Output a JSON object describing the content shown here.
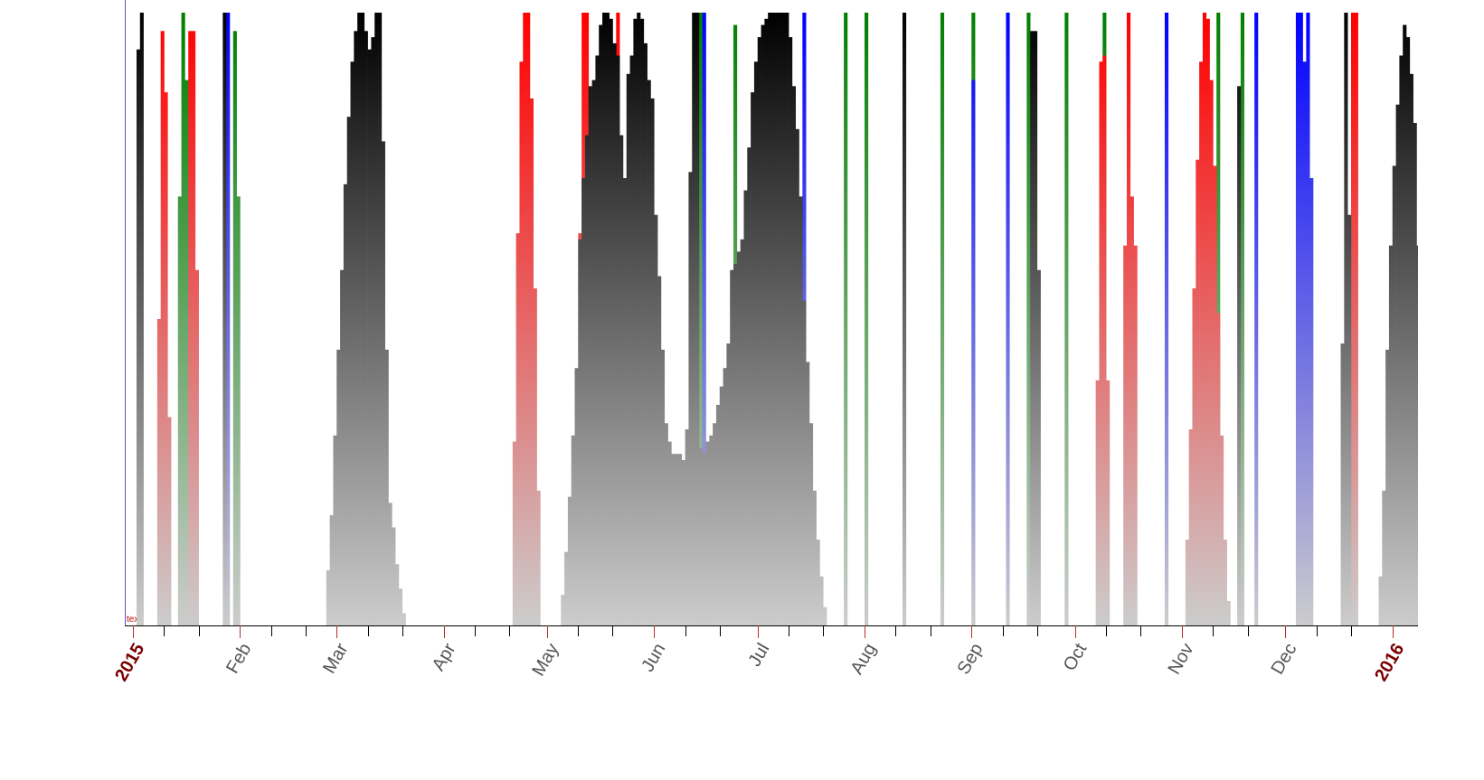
{
  "chart_data": {
    "type": "bar",
    "annotation": "text",
    "xlim": [
      -2.4,
      372.4
    ],
    "ylim": [
      0,
      100
    ],
    "xticks": [
      {
        "value": 0,
        "label": "2015"
      },
      {
        "value": 31,
        "label": "Feb"
      },
      {
        "value": 59,
        "label": "Mar"
      },
      {
        "value": 90,
        "label": "Apr"
      },
      {
        "value": 120,
        "label": "May"
      },
      {
        "value": 151,
        "label": "Jun"
      },
      {
        "value": 181,
        "label": "Jul"
      },
      {
        "value": 212,
        "label": "Aug"
      },
      {
        "value": 243,
        "label": "Sep"
      },
      {
        "value": 273,
        "label": "Oct"
      },
      {
        "value": 304,
        "label": "Nov"
      },
      {
        "value": 334,
        "label": "Dec"
      },
      {
        "value": 365,
        "label": "2016"
      }
    ],
    "xminorticks": [
      9,
      19,
      40,
      50,
      68,
      78,
      99,
      109,
      129,
      139,
      160,
      170,
      190,
      200,
      221,
      231,
      252,
      262,
      282,
      292,
      313,
      323,
      343,
      353
    ],
    "series": [
      {
        "color": "#008000",
        "x": [
          13,
          14,
          15,
          29,
          30,
          164,
          174,
          206,
          212,
          234,
          243,
          259,
          270,
          281,
          314,
          321
        ],
        "values": [
          70,
          100,
          89,
          97,
          70,
          100,
          98,
          100,
          100,
          100,
          100,
          100,
          100,
          100,
          100,
          100
        ]
      },
      {
        "color": "#ff0000",
        "x": [
          7,
          8,
          9,
          10,
          16,
          17,
          18,
          110,
          111,
          112,
          113,
          114,
          115,
          116,
          117,
          129,
          130,
          131,
          140,
          279,
          280,
          281,
          282,
          287,
          288,
          289,
          290,
          305,
          306,
          307,
          308,
          309,
          310,
          311,
          312,
          313,
          314,
          315,
          316,
          317,
          353,
          354
        ],
        "values": [
          50,
          97,
          87,
          34,
          97,
          97,
          58,
          30,
          64,
          92,
          100,
          100,
          86,
          55,
          22,
          64,
          100,
          100,
          100,
          40,
          92,
          93,
          40,
          62,
          100,
          70,
          62,
          14,
          32,
          55,
          76,
          92,
          100,
          99,
          89,
          75,
          51,
          31,
          14,
          4,
          100,
          100
        ]
      },
      {
        "color": "#0000ff",
        "x": [
          27,
          165,
          194,
          243,
          253,
          299,
          325,
          337,
          338,
          339,
          340,
          341
        ],
        "values": [
          100,
          100,
          100,
          89,
          100,
          100,
          100,
          100,
          100,
          92,
          100,
          73
        ]
      },
      {
        "color": "#000000",
        "x": [
          1,
          2,
          26,
          56,
          57,
          58,
          59,
          60,
          61,
          62,
          63,
          64,
          65,
          66,
          67,
          68,
          69,
          70,
          71,
          72,
          73,
          74,
          75,
          76,
          77,
          78,
          124,
          125,
          126,
          127,
          128,
          129,
          130,
          131,
          132,
          133,
          134,
          135,
          136,
          137,
          138,
          139,
          140,
          141,
          142,
          143,
          144,
          145,
          146,
          147,
          148,
          149,
          150,
          151,
          152,
          153,
          154,
          155,
          156,
          157,
          158,
          159,
          160,
          161,
          162,
          163,
          164,
          165,
          166,
          167,
          168,
          169,
          170,
          171,
          172,
          173,
          174,
          175,
          176,
          177,
          178,
          179,
          180,
          181,
          182,
          183,
          184,
          185,
          186,
          187,
          188,
          189,
          190,
          191,
          192,
          193,
          194,
          195,
          196,
          197,
          198,
          199,
          200,
          223,
          260,
          261,
          262,
          320,
          350,
          351,
          352,
          361,
          362,
          363,
          364,
          365,
          366,
          367,
          368,
          369,
          370,
          371,
          372
        ],
        "values": [
          94,
          100,
          100,
          9,
          18,
          31,
          45,
          58,
          72,
          83,
          92,
          97,
          100,
          100,
          97,
          94,
          96,
          100,
          100,
          79,
          45,
          20,
          16,
          10,
          6,
          2,
          5,
          12,
          21,
          31,
          42,
          63,
          73,
          80,
          88,
          89,
          93,
          98,
          100,
          100,
          99,
          95,
          93,
          80,
          73,
          90,
          93,
          99,
          100,
          99,
          95,
          89,
          86,
          67,
          57,
          45,
          33,
          30,
          28,
          28,
          28,
          27,
          32,
          74,
          100,
          100,
          29,
          28,
          30,
          31,
          33,
          36,
          39,
          42,
          46,
          58,
          59,
          61,
          63,
          71,
          78,
          87,
          92,
          96,
          98,
          99,
          100,
          100,
          100,
          100,
          100,
          100,
          96,
          88,
          81,
          70,
          53,
          43,
          33,
          22,
          14,
          8,
          3,
          100,
          97,
          97,
          58,
          88,
          46,
          100,
          67,
          8,
          22,
          45,
          62,
          75,
          85,
          93,
          98,
          96,
          90,
          82,
          62
        ]
      }
    ]
  }
}
